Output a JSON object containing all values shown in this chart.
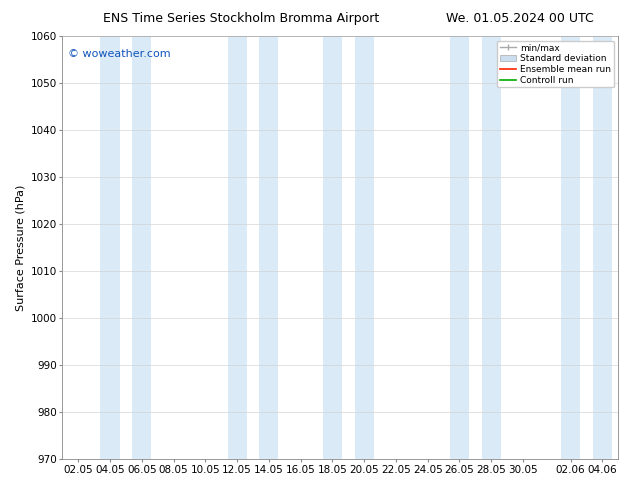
{
  "title_left": "ENS Time Series Stockholm Bromma Airport",
  "title_right": "We. 01.05.2024 00 UTC",
  "ylabel": "Surface Pressure (hPa)",
  "ylim": [
    970,
    1060
  ],
  "yticks": [
    970,
    980,
    990,
    1000,
    1010,
    1020,
    1030,
    1040,
    1050,
    1060
  ],
  "xtick_labels": [
    "02.05",
    "04.05",
    "06.05",
    "08.05",
    "10.05",
    "12.05",
    "14.05",
    "16.05",
    "18.05",
    "20.05",
    "22.05",
    "24.05",
    "26.05",
    "28.05",
    "30.05",
    "02.06",
    "04.06"
  ],
  "bg_color": "#ffffff",
  "plot_bg_color": "#ffffff",
  "band_color": "#daeaf7",
  "watermark": "© woweather.com",
  "watermark_color": "#1155bb",
  "legend_labels": [
    "min/max",
    "Standard deviation",
    "Ensemble mean run",
    "Controll run"
  ],
  "title_fontsize": 9,
  "axis_fontsize": 8,
  "tick_fontsize": 7.5
}
